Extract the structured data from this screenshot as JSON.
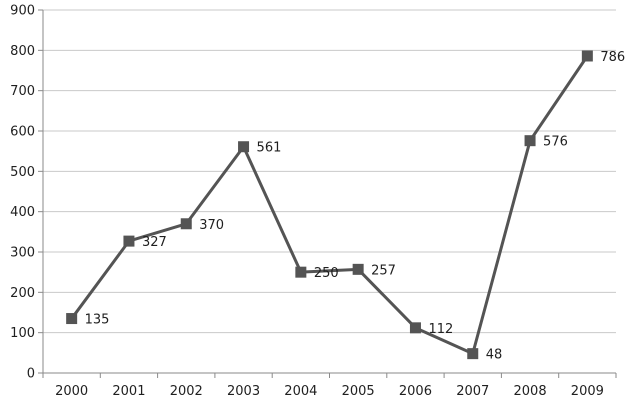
{
  "chart_data": {
    "type": "line",
    "title": "",
    "xlabel": "",
    "ylabel": "",
    "categories": [
      "2000",
      "2001",
      "2002",
      "2003",
      "2004",
      "2005",
      "2006",
      "2007",
      "2008",
      "2009"
    ],
    "series": [
      {
        "values": [
          135,
          327,
          370,
          561,
          250,
          257,
          112,
          48,
          576,
          786
        ],
        "labels": [
          "135",
          "327",
          "370",
          "561",
          "250",
          "257",
          "112",
          "48",
          "576",
          "786"
        ]
      }
    ],
    "ylim": [
      0,
      900
    ],
    "yticks": [
      "0",
      "100",
      "200",
      "300",
      "400",
      "500",
      "600",
      "700",
      "800",
      "900"
    ],
    "grid": true,
    "legend": "none",
    "marker": "square",
    "colors": {
      "series": "#545454",
      "grid": "#c9c9c9",
      "axis": "#8a8a8a",
      "text": "#1f1f1f"
    }
  }
}
